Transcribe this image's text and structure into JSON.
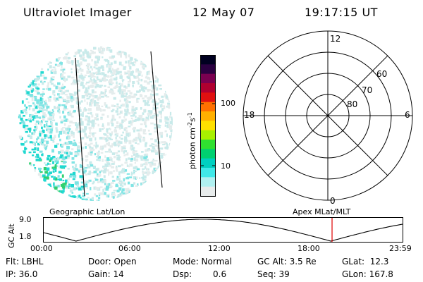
{
  "header": {
    "instrument": "Ultraviolet Imager",
    "date": "12 May 07",
    "time": "19:17:15 UT"
  },
  "colorbar": {
    "unit_label": "photon cm-2s-1",
    "ticks": [
      "100",
      "10"
    ],
    "colors": [
      "#000020",
      "#2a0040",
      "#7a0050",
      "#b00030",
      "#e01010",
      "#ff7000",
      "#ffb000",
      "#ffe000",
      "#a8f000",
      "#30e030",
      "#00d070",
      "#00d0c0",
      "#40e8e8",
      "#b0f0f0",
      "#e8ecec"
    ]
  },
  "polar_grid": {
    "mlt_labels": {
      "top": "12",
      "bottom": "0",
      "left": "18",
      "right": "6"
    },
    "mlat_labels": [
      "60",
      "70",
      "80"
    ]
  },
  "labels": {
    "geo_grid": "Geographic Lat/Lon",
    "apex_grid": "Apex MLat/MLT"
  },
  "altitude_plot": {
    "axis_title": "GC Alt",
    "y_ticks": [
      "9.0",
      "1.8"
    ],
    "x_ticks": [
      "00:00",
      "06:00",
      "12:00",
      "18:00",
      "23:59"
    ],
    "current_fraction": 0.8036,
    "marker_color": "#e00000"
  },
  "status": {
    "flt": "Flt: LBHL",
    "ip": "IP: 36.0",
    "door": "Door: Open",
    "gain": "Gain: 14",
    "mode": "Mode: Normal",
    "dsp": "Dsp:",
    "dsp_value": "0.6",
    "gc_alt": "GC Alt: 3.5 Re",
    "seq": "Seq: 39",
    "glat": "GLat:  12.3",
    "glon": "GLon: 167.8"
  }
}
